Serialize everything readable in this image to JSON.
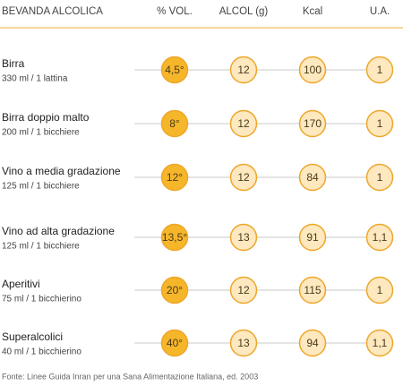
{
  "table": {
    "columns": [
      "BEVANDA ALCOLICA",
      "% VOL.",
      "ALCOL (g)",
      "Kcal",
      "U.A."
    ],
    "rows": [
      {
        "name": "Birra",
        "portion": "330 ml / 1 lattina",
        "cells": [
          "4,5°",
          "12",
          "100",
          "1"
        ]
      },
      {
        "name": "Birra doppio malto",
        "portion": "200 ml / 1 bicchiere",
        "cells": [
          "8°",
          "12",
          "170",
          "1"
        ]
      },
      {
        "name": "Vino a media gradazione",
        "portion": "125 ml / 1 bicchiere",
        "cells": [
          "12°",
          "12",
          "84",
          "1"
        ]
      },
      {
        "name": "Vino ad alta gradazione",
        "portion": "125 ml / 1 bicchiere",
        "cells": [
          "13,5°",
          "13",
          "91",
          "1,1"
        ]
      },
      {
        "name": "Aperitivi",
        "portion": "75 ml / 1 bicchierino",
        "cells": [
          "20°",
          "12",
          "115",
          "1"
        ]
      },
      {
        "name": "Superalcolici",
        "portion": "40 ml / 1 bicchierino",
        "cells": [
          "40°",
          "13",
          "94",
          "1,1"
        ]
      }
    ]
  },
  "footer": {
    "source": "Fonte: Linee Guida Inran per una Sana Alimentazione Italiana, ed. 2003"
  }
}
